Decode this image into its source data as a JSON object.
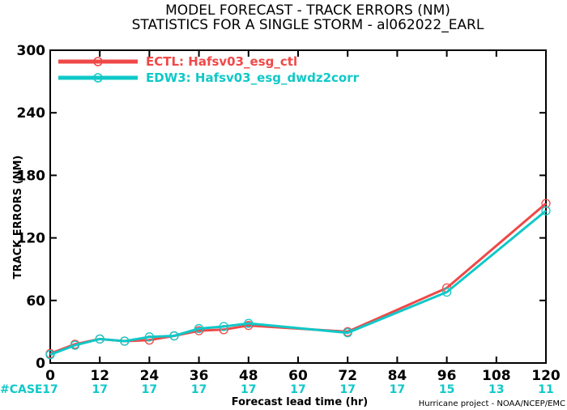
{
  "chart_data": {
    "type": "line",
    "title": "MODEL FORECAST - TRACK ERRORS (NM)",
    "subtitle": "STATISTICS FOR A SINGLE STORM - al062022_EARL",
    "xlabel": "Forecast lead time (hr)",
    "ylabel": "TRACK ERRORS (NM)",
    "xlim": [
      0,
      120
    ],
    "ylim": [
      0,
      300
    ],
    "x_ticks": [
      "0",
      "12",
      "24",
      "36",
      "48",
      "60",
      "72",
      "84",
      "96",
      "108",
      "120"
    ],
    "y_ticks": [
      "0",
      "60",
      "120",
      "180",
      "240",
      "300"
    ],
    "x": [
      0,
      6,
      12,
      18,
      24,
      30,
      36,
      42,
      48,
      72,
      96,
      120
    ],
    "series": [
      {
        "name": "ECTL: Hafsv03_esg_ctl",
        "color": "#f04848",
        "values": [
          9,
          18,
          23,
          21,
          22,
          26,
          31,
          32,
          36,
          30,
          72,
          153
        ]
      },
      {
        "name": "EDW3: Hafsv03_esg_dwdz2corr",
        "color": "#10c8c8",
        "values": [
          8,
          17,
          23,
          21,
          25,
          26,
          33,
          35,
          38,
          29,
          68,
          146
        ]
      }
    ],
    "case_label": "#CASE",
    "case_x": [
      0,
      12,
      24,
      36,
      48,
      60,
      72,
      84,
      96,
      108,
      120
    ],
    "case_counts": [
      "17",
      "17",
      "17",
      "17",
      "17",
      "17",
      "17",
      "17",
      "15",
      "13",
      "11"
    ],
    "legend_position": "top-left",
    "grid": false,
    "credit": "Hurricane project - NOAA/NCEP/EMC"
  }
}
